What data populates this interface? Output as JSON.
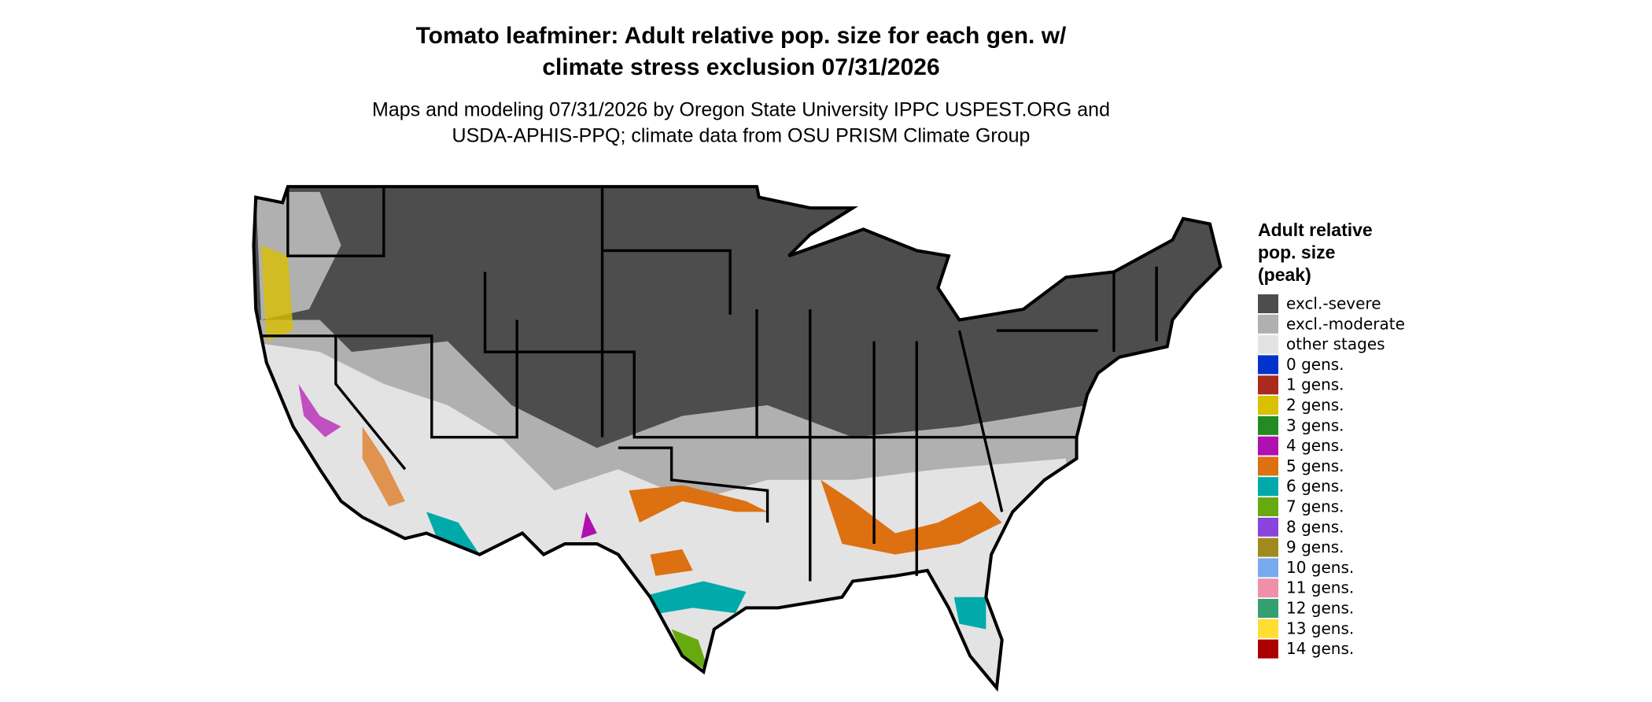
{
  "header": {
    "title": [
      "Tomato leafminer: Adult relative pop. size for each gen. w/",
      "climate stress exclusion 07/31/2026"
    ],
    "subtitle": [
      "Maps and modeling 07/31/2026 by Oregon State University IPPC USPEST.ORG and",
      "USDA-APHIS-PPQ; climate data from OSU PRISM Climate Group"
    ]
  },
  "legend": {
    "title": [
      "Adult relative",
      "pop. size",
      "(peak)"
    ],
    "items": [
      {
        "label": "excl.-severe",
        "color": "#4d4d4d"
      },
      {
        "label": "excl.-moderate",
        "color": "#b0b0b0"
      },
      {
        "label": "other stages",
        "color": "#e3e3e3"
      },
      {
        "label": "0 gens.",
        "color": "#0033cc"
      },
      {
        "label": "1 gens.",
        "color": "#aa2a1e"
      },
      {
        "label": "2 gens.",
        "color": "#d9c000"
      },
      {
        "label": "3 gens.",
        "color": "#238b22"
      },
      {
        "label": "4 gens.",
        "color": "#b010b0"
      },
      {
        "label": "5 gens.",
        "color": "#dd7010"
      },
      {
        "label": "6 gens.",
        "color": "#00aaaa"
      },
      {
        "label": "7 gens.",
        "color": "#66aa10"
      },
      {
        "label": "8 gens.",
        "color": "#8844dd"
      },
      {
        "label": "9 gens.",
        "color": "#a08a20"
      },
      {
        "label": "10 gens.",
        "color": "#77aaee"
      },
      {
        "label": "11 gens.",
        "color": "#ee90aa"
      },
      {
        "label": "12 gens.",
        "color": "#33a070"
      },
      {
        "label": "13 gens.",
        "color": "#ffdd33"
      },
      {
        "label": "14 gens.",
        "color": "#aa0000"
      }
    ]
  }
}
